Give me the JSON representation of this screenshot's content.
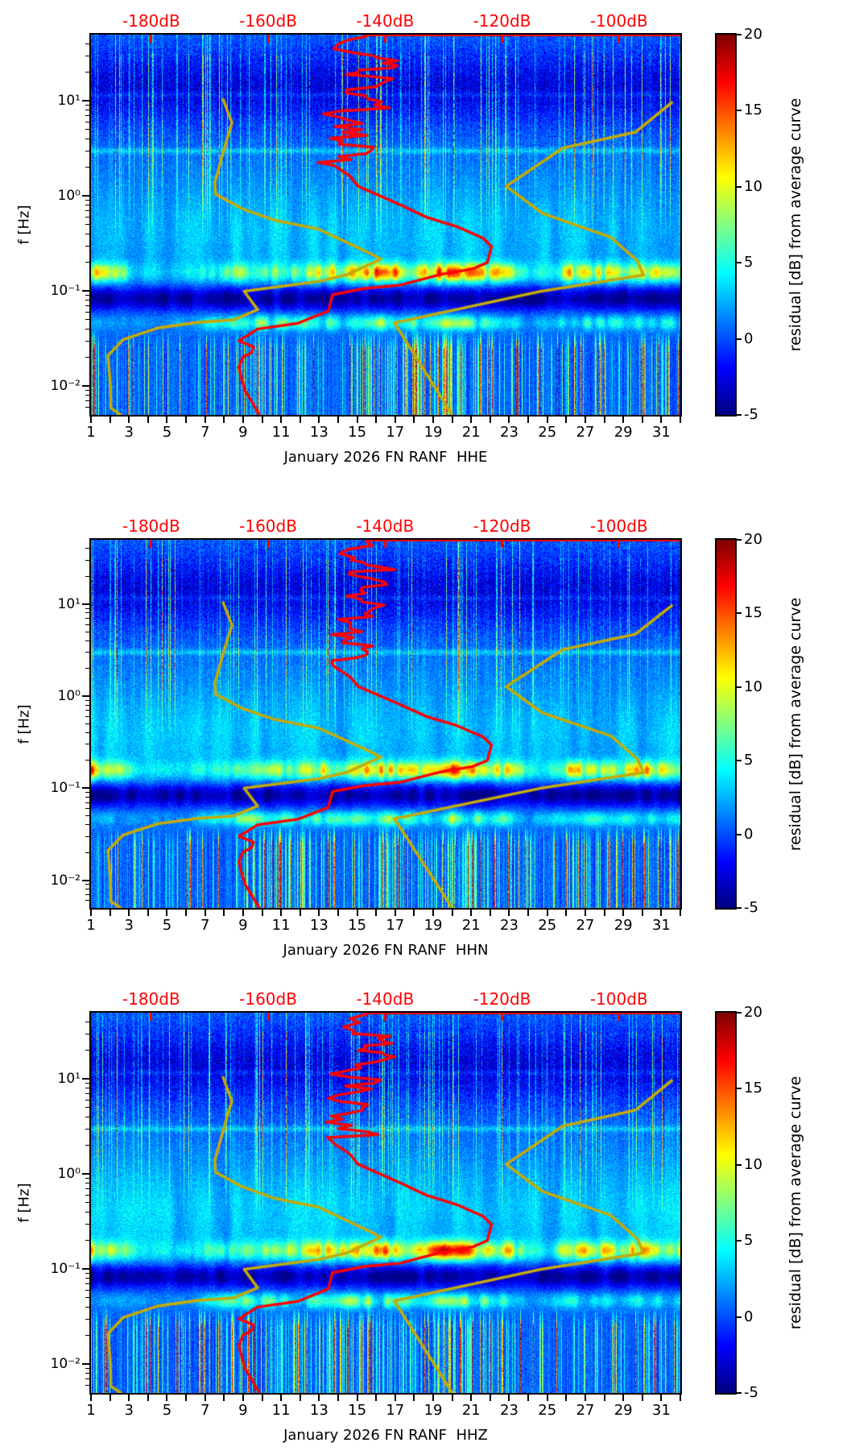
{
  "figure": {
    "background": "#ffffff"
  },
  "chart_data": {
    "type": "heatmap",
    "panels": [
      {
        "title": "January 2026 FN RANF  HHE",
        "seed": 101
      },
      {
        "title": "January 2026 FN RANF  HHN",
        "seed": 2027
      },
      {
        "title": "January 2026 FN RANF  HHZ",
        "seed": 777
      }
    ],
    "x_axis": {
      "tick_labels": [
        "1",
        "3",
        "5",
        "7",
        "9",
        "11",
        "13",
        "15",
        "17",
        "19",
        "21",
        "23",
        "25",
        "27",
        "29",
        "31"
      ],
      "tick_values": [
        1,
        3,
        5,
        7,
        9,
        11,
        13,
        15,
        17,
        19,
        21,
        23,
        25,
        27,
        29,
        31
      ],
      "day_min": 1,
      "day_max": 32
    },
    "y_axis": {
      "label": "f [Hz]",
      "scale": "log",
      "tick_labels": [
        "10¹",
        "10⁰",
        "10⁻¹",
        "10⁻²"
      ],
      "tick_values": [
        10,
        1,
        0.1,
        0.01
      ],
      "f_min": 0.005,
      "f_max": 49.9
    },
    "top_axis": {
      "labels": [
        "-180dB",
        "-160dB",
        "-140dB",
        "-120dB",
        "-100dB"
      ],
      "values": [
        -180,
        -160,
        -140,
        -120,
        -100
      ],
      "db_min": -190.3,
      "db_max": -89.5,
      "color": "#ff0000"
    },
    "colorbar": {
      "label": "residual [dB] from average curve",
      "ticks": [
        20,
        15,
        10,
        5,
        0,
        -5
      ],
      "vmin": -5,
      "vmax": 20,
      "colormap": "jet"
    },
    "curves": {
      "colors": {
        "red": "#ff0000",
        "yellow": "#c3aa0a"
      },
      "red_psd_db_freq": [
        [
          -89.5,
          49.5
        ],
        [
          -143.0,
          49.5
        ],
        [
          -143.2,
          48
        ],
        [
          -145.2,
          32
        ],
        [
          -140.4,
          25
        ],
        [
          -144.6,
          20
        ],
        [
          -139.7,
          16.3
        ],
        [
          -146.6,
          12.2
        ],
        [
          -141.8,
          9.1
        ],
        [
          -148.0,
          6.8
        ],
        [
          -143.9,
          5.0
        ],
        [
          -147.3,
          3.8
        ],
        [
          -143.2,
          2.8
        ],
        [
          -148.7,
          2.1
        ],
        [
          -146.0,
          1.62
        ],
        [
          -144.6,
          1.27
        ],
        [
          -137.4,
          0.81
        ],
        [
          -132.9,
          0.6
        ],
        [
          -127.8,
          0.48
        ],
        [
          -123.2,
          0.36
        ],
        [
          -121.8,
          0.295
        ],
        [
          -122.5,
          0.2
        ],
        [
          -125.0,
          0.172
        ],
        [
          -130.5,
          0.15
        ],
        [
          -137.4,
          0.116
        ],
        [
          -143.5,
          0.107
        ],
        [
          -149.0,
          0.092
        ],
        [
          -149.7,
          0.062
        ],
        [
          -154.9,
          0.046
        ],
        [
          -161.8,
          0.04
        ],
        [
          -165.0,
          0.03
        ],
        [
          -162.5,
          0.026
        ],
        [
          -162.8,
          0.0227
        ],
        [
          -164.3,
          0.0202
        ],
        [
          -165.0,
          0.0159
        ],
        [
          -164.6,
          0.0124
        ],
        [
          -163.9,
          0.0089
        ],
        [
          -162.8,
          0.0069
        ],
        [
          -161.5,
          0.005
        ]
      ],
      "yellow_average_db_freq": [
        [
          -167.7,
          10.4
        ],
        [
          -166.2,
          5.9
        ],
        [
          -167.3,
          3.5
        ],
        [
          -169.1,
          1.41
        ],
        [
          -169.0,
          1.05
        ],
        [
          -164.5,
          0.74
        ],
        [
          -159.0,
          0.56
        ],
        [
          -151.4,
          0.45
        ],
        [
          -142.9,
          0.256
        ],
        [
          -140.7,
          0.218
        ],
        [
          -146.6,
          0.148
        ],
        [
          -151.3,
          0.127
        ],
        [
          -164.1,
          0.1
        ],
        [
          -161.8,
          0.064
        ],
        [
          -165.9,
          0.05
        ],
        [
          -172.0,
          0.047
        ],
        [
          -178.9,
          0.041
        ],
        [
          -184.8,
          0.031
        ],
        [
          -187.4,
          0.021
        ],
        [
          -187.0,
          0.0106
        ],
        [
          -186.9,
          0.0059
        ],
        [
          -185.2,
          0.005
        ]
      ],
      "yellow_upper_db_freq": [
        [
          -91.0,
          9.6
        ],
        [
          -97.2,
          4.7
        ],
        [
          -109.6,
          3.2
        ],
        [
          -119.3,
          1.27
        ],
        [
          -113.1,
          0.66
        ],
        [
          -101.4,
          0.37
        ],
        [
          -96.9,
          0.21
        ],
        [
          -95.8,
          0.148
        ],
        [
          -113.3,
          0.1
        ],
        [
          -138.4,
          0.0465
        ],
        [
          -128.5,
          0.005
        ]
      ]
    },
    "texture": {
      "microseism_envelope": [
        [
          1,
          10
        ],
        [
          2.2,
          7
        ],
        [
          3.5,
          1.5
        ],
        [
          6,
          2
        ],
        [
          8,
          4.5
        ],
        [
          10,
          6
        ],
        [
          12,
          5
        ],
        [
          13,
          8
        ],
        [
          14,
          7
        ],
        [
          15,
          9
        ],
        [
          16,
          12
        ],
        [
          17,
          11
        ],
        [
          18,
          7
        ],
        [
          19,
          12
        ],
        [
          20,
          13
        ],
        [
          21,
          11
        ],
        [
          22,
          8
        ],
        [
          23,
          9
        ],
        [
          24,
          3
        ],
        [
          25,
          2
        ],
        [
          26,
          8
        ],
        [
          27,
          9
        ],
        [
          28,
          8
        ],
        [
          29,
          6
        ],
        [
          30,
          10
        ],
        [
          31,
          8
        ],
        [
          32,
          7
        ]
      ],
      "mottle_envelope": [
        [
          1,
          2
        ],
        [
          3,
          1
        ],
        [
          6,
          1
        ],
        [
          8,
          4
        ],
        [
          10,
          5
        ],
        [
          12,
          4
        ],
        [
          14,
          5
        ],
        [
          16,
          6
        ],
        [
          18,
          5
        ],
        [
          20,
          6
        ],
        [
          22,
          5
        ],
        [
          23,
          4
        ],
        [
          24,
          1
        ],
        [
          26,
          3
        ],
        [
          28,
          4
        ],
        [
          30,
          3
        ],
        [
          32,
          3
        ]
      ],
      "comb_density": [
        [
          1,
          0.45
        ],
        [
          3,
          0.4
        ],
        [
          5,
          0.35
        ],
        [
          7,
          0.3
        ],
        [
          9,
          0.5
        ],
        [
          10,
          0.8
        ],
        [
          11,
          0.85
        ],
        [
          12,
          0.6
        ],
        [
          13,
          0.45
        ],
        [
          15,
          0.5
        ],
        [
          16,
          0.8
        ],
        [
          17,
          0.9
        ],
        [
          18,
          0.7
        ],
        [
          19,
          0.75
        ],
        [
          20,
          0.9
        ],
        [
          21,
          0.95
        ],
        [
          22,
          0.8
        ],
        [
          23,
          0.5
        ],
        [
          24,
          0.3
        ],
        [
          25,
          0.3
        ],
        [
          26,
          0.45
        ],
        [
          27,
          0.5
        ],
        [
          28,
          0.45
        ],
        [
          29,
          0.4
        ],
        [
          30,
          0.5
        ],
        [
          31,
          0.55
        ],
        [
          32,
          0.5
        ]
      ],
      "streak_density": [
        [
          1,
          0.5
        ],
        [
          2,
          0.6
        ],
        [
          3,
          0.5
        ],
        [
          4,
          0.55
        ],
        [
          5,
          0.4
        ],
        [
          6,
          0.5
        ],
        [
          7,
          0.45
        ],
        [
          8,
          0.6
        ],
        [
          9,
          0.65
        ],
        [
          10,
          0.7
        ],
        [
          11,
          0.65
        ],
        [
          12,
          0.6
        ],
        [
          13,
          0.65
        ],
        [
          14,
          0.5
        ],
        [
          15,
          0.45
        ],
        [
          16,
          0.75
        ],
        [
          17,
          0.7
        ],
        [
          18,
          0.45
        ],
        [
          19,
          0.5
        ],
        [
          20,
          0.65
        ],
        [
          21,
          0.7
        ],
        [
          22,
          0.6
        ],
        [
          23,
          0.45
        ],
        [
          24,
          0.35
        ],
        [
          25,
          0.45
        ],
        [
          26,
          0.6
        ],
        [
          27,
          0.65
        ],
        [
          28,
          0.6
        ],
        [
          29,
          0.45
        ],
        [
          30,
          0.55
        ],
        [
          31,
          0.5
        ],
        [
          32,
          0.45
        ]
      ]
    }
  }
}
